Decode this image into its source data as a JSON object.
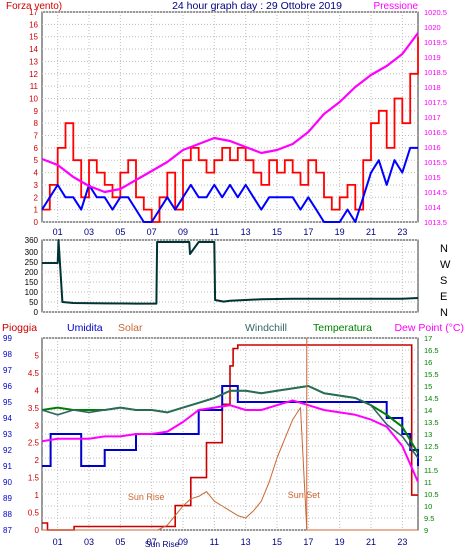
{
  "colors": {
    "wind": "#ff0000",
    "gust": "#0000ff",
    "pressure": "#ff00ff",
    "direction": "#003333",
    "rain": "#cc0000",
    "humidity": "#0000cc",
    "solar": "#cc6633",
    "temperature": "#008000",
    "windchill": "#336666",
    "dewpoint": "#ff00ff",
    "grid": "#bdbdbd",
    "axis": "#333333",
    "title": "#000080"
  },
  "chart_data": [
    {
      "type": "line",
      "title": "24 hour graph day : 29 Ottobre 2019",
      "left_axis_label": "Forza vento)",
      "right_axis_label": "Pressione",
      "x_ticks": [
        "01",
        "03",
        "05",
        "07",
        "09",
        "11",
        "13",
        "15",
        "17",
        "19",
        "21",
        "23"
      ],
      "ylim_left": [
        0,
        17
      ],
      "y_ticks_left": [
        "0",
        "1",
        "2",
        "3",
        "4",
        "5",
        "6",
        "7",
        "8",
        "9",
        "10",
        "11",
        "12",
        "13",
        "14",
        "15",
        "16",
        "17"
      ],
      "ylim_right": [
        1013.5,
        1020.5
      ],
      "y_ticks_right": [
        "1013.5",
        "1014",
        "1014.5",
        "1015",
        "1015.5",
        "1016",
        "1016.5",
        "1017",
        "1017.5",
        "1018",
        "1018.5",
        "1019",
        "1019.5",
        "1020",
        "1020.5"
      ],
      "grid": true,
      "series": [
        {
          "key": "wind",
          "x": [
            0,
            0.5,
            1,
            1.5,
            2,
            2.5,
            3,
            3.5,
            4,
            4.5,
            5,
            5.5,
            6,
            6.5,
            7,
            7.5,
            8,
            8.5,
            9,
            9.5,
            10,
            10.5,
            11,
            11.5,
            12,
            12.5,
            13,
            13.5,
            14,
            14.5,
            15,
            15.5,
            16,
            16.5,
            17,
            17.5,
            18,
            18.5,
            19,
            19.5,
            20,
            20.5,
            21,
            21.5,
            22,
            22.5,
            23,
            23.5,
            24
          ],
          "y": [
            1,
            3,
            6,
            8,
            5,
            2,
            5,
            4,
            3,
            2,
            4,
            5,
            2,
            1,
            0,
            2,
            4,
            1,
            5,
            6,
            5,
            4,
            5,
            6,
            5,
            6,
            5,
            4,
            3,
            5,
            4,
            5,
            4,
            3,
            5,
            4,
            2,
            1,
            2,
            3,
            1,
            5,
            8,
            9,
            6,
            10,
            8,
            12,
            15
          ]
        },
        {
          "key": "gust",
          "x": [
            0,
            0.5,
            1,
            1.5,
            2,
            2.5,
            3,
            3.5,
            4,
            4.5,
            5,
            5.5,
            6,
            6.5,
            7,
            7.5,
            8,
            8.5,
            9,
            9.5,
            10,
            10.5,
            11,
            11.5,
            12,
            12.5,
            13,
            13.5,
            14,
            14.5,
            15,
            15.5,
            16,
            16.5,
            17,
            17.5,
            18,
            18.5,
            19,
            19.5,
            20,
            20.5,
            21,
            21.5,
            22,
            22.5,
            23,
            23.5,
            24
          ],
          "y": [
            1,
            2,
            3,
            2,
            2,
            1,
            3,
            2,
            2,
            1,
            2,
            2,
            1,
            0,
            0,
            1,
            2,
            1,
            2,
            3,
            2,
            2,
            3,
            2,
            3,
            2,
            3,
            2,
            1,
            2,
            2,
            2,
            2,
            1,
            2,
            1,
            0,
            0,
            0,
            1,
            0,
            2,
            4,
            5,
            3,
            5,
            4,
            6,
            6
          ]
        },
        {
          "key": "pressure",
          "x": [
            0,
            1,
            2,
            3,
            4,
            5,
            6,
            7,
            8,
            9,
            10,
            11,
            12,
            13,
            14,
            15,
            16,
            17,
            18,
            19,
            20,
            21,
            22,
            23,
            24
          ],
          "y": [
            1015.6,
            1015.4,
            1015.0,
            1014.7,
            1014.5,
            1014.6,
            1014.9,
            1015.2,
            1015.5,
            1015.9,
            1016.1,
            1016.3,
            1016.2,
            1016.0,
            1015.8,
            1015.9,
            1016.1,
            1016.5,
            1017.1,
            1017.5,
            1018.0,
            1018.4,
            1018.7,
            1019.1,
            1019.8
          ]
        }
      ]
    },
    {
      "type": "line",
      "direction_labels": [
        "N",
        "W",
        "S",
        "E",
        "N"
      ],
      "ylim": [
        0,
        360
      ],
      "y_ticks": [
        "0",
        "50",
        "100",
        "150",
        "200",
        "250",
        "300",
        "360"
      ],
      "series": [
        {
          "key": "direction",
          "x": [
            0,
            1,
            1.05,
            1.3,
            2,
            4,
            6,
            7.3,
            7.35,
            8,
            9.4,
            9.45,
            10,
            11,
            11.05,
            11.6,
            12,
            13,
            14,
            16,
            18,
            20,
            22,
            23,
            24
          ],
          "y": [
            245,
            245,
            360,
            50,
            45,
            43,
            42,
            42,
            350,
            350,
            350,
            290,
            350,
            350,
            60,
            52,
            56,
            60,
            64,
            66,
            66,
            66,
            66,
            66,
            70
          ]
        }
      ]
    },
    {
      "type": "line",
      "axis_labels": {
        "rain": "Pioggia",
        "humidity": "Umidita",
        "solar": "Solar",
        "windchill": "Windchill",
        "temperature": "Temperatura",
        "dewpoint": "Dew Point (°C)"
      },
      "ylim_rain": [
        0,
        5.5
      ],
      "y_ticks_rain": [
        "0",
        "0.5",
        "1",
        "1.5",
        "2",
        "2.5",
        "3",
        "3.5",
        "4",
        "4.5",
        "5"
      ],
      "ylim_humidity": [
        87,
        99
      ],
      "y_ticks_humidity": [
        "87",
        "88",
        "89",
        "90",
        "91",
        "92",
        "93",
        "94",
        "95",
        "96",
        "97",
        "98",
        "99"
      ],
      "ylim_temp": [
        9,
        17
      ],
      "y_ticks_temp": [
        "9",
        "9.5",
        "10",
        "10.5",
        "11",
        "11.5",
        "12",
        "12.5",
        "13",
        "13.5",
        "14",
        "14.5",
        "15",
        "15.5",
        "16",
        "16.5",
        "17"
      ],
      "annotations": {
        "sunrise": "Sun Rise",
        "sunset": "Sun Set",
        "sunrise_axis": "Sun Rise"
      },
      "sunrise_hour": 7.4,
      "sunset_hour": 16.9,
      "series": [
        {
          "key": "rain",
          "x": [
            0,
            0.3,
            0.35,
            2,
            2.05,
            7.6,
            8.5,
            9.5,
            10.5,
            11.5,
            12,
            12.2,
            12.5,
            14,
            16,
            18,
            20,
            22,
            23.5,
            23.6,
            24
          ],
          "y": [
            0.2,
            0.2,
            0,
            0,
            0.1,
            0.1,
            0.7,
            1.5,
            2.5,
            3.6,
            4.7,
            5.2,
            5.3,
            5.3,
            5.3,
            5.3,
            5.3,
            5.3,
            5.3,
            1.0,
            1.0
          ]
        },
        {
          "key": "humidity",
          "x": [
            0,
            0.5,
            0.55,
            1,
            1.5,
            2,
            2.5,
            3,
            3.5,
            4,
            5,
            6,
            7,
            8,
            9,
            10,
            11,
            11.5,
            12,
            12.5,
            13,
            14,
            15,
            16,
            17,
            18,
            19,
            20,
            21,
            22,
            23,
            23.5,
            24
          ],
          "y": [
            91,
            91,
            93,
            93,
            93,
            93,
            91,
            91,
            91,
            92,
            92,
            93,
            93,
            93,
            93,
            94.5,
            94.5,
            96,
            96,
            95,
            95,
            95,
            95,
            95,
            95,
            95,
            95,
            95,
            95,
            94,
            93,
            92,
            91
          ]
        },
        {
          "key": "solar",
          "x": [
            0,
            7.4,
            8,
            8.5,
            9,
            9.5,
            10,
            10.5,
            11,
            11.5,
            12,
            12.5,
            13,
            13.5,
            14,
            14.5,
            15,
            15.5,
            16,
            16.5,
            16.9,
            24
          ],
          "y": [
            9,
            9,
            9.2,
            9.6,
            10.0,
            10.3,
            10.4,
            10.6,
            10.2,
            10.0,
            9.8,
            9.6,
            9.5,
            9.8,
            10.2,
            11.0,
            12.0,
            12.8,
            13.6,
            14.1,
            9,
            9
          ]
        },
        {
          "key": "temperature",
          "x": [
            0,
            1,
            2,
            3,
            4,
            5,
            6,
            7,
            8,
            9,
            10,
            11,
            12,
            13,
            14,
            15,
            16,
            17,
            18,
            19,
            20,
            21,
            22,
            23,
            24
          ],
          "y": [
            14.0,
            14.1,
            14.0,
            14.0,
            14.0,
            14.1,
            14.0,
            14.0,
            13.9,
            14.1,
            14.3,
            14.5,
            14.8,
            14.8,
            14.7,
            14.8,
            14.9,
            15.0,
            14.7,
            14.6,
            14.5,
            14.2,
            13.8,
            13.3,
            12.2
          ]
        },
        {
          "key": "windchill",
          "x": [
            0,
            1,
            2,
            3,
            4,
            5,
            6,
            7,
            8,
            9,
            10,
            11,
            12,
            13,
            14,
            15,
            16,
            17,
            18,
            19,
            20,
            21,
            22,
            23,
            24
          ],
          "y": [
            14.0,
            13.8,
            14.0,
            13.9,
            14.0,
            14.1,
            14.0,
            14.0,
            13.9,
            14.1,
            14.3,
            14.5,
            14.8,
            14.8,
            14.7,
            14.8,
            14.9,
            15.0,
            14.7,
            14.6,
            14.5,
            14.2,
            13.4,
            12.9,
            12.0
          ]
        },
        {
          "key": "dewpoint",
          "x": [
            0,
            1,
            2,
            3,
            4,
            5,
            6,
            7,
            8,
            9,
            10,
            11,
            12,
            13,
            14,
            15,
            16,
            17,
            18,
            19,
            20,
            21,
            22,
            23,
            24
          ],
          "y": [
            12.7,
            12.8,
            12.8,
            12.8,
            12.9,
            12.9,
            13.0,
            13.0,
            13.1,
            13.5,
            14.0,
            14.1,
            14.2,
            14.0,
            14.0,
            14.2,
            14.4,
            14.2,
            14.0,
            13.9,
            13.8,
            13.6,
            13.3,
            12.5,
            11.0
          ]
        }
      ]
    }
  ]
}
